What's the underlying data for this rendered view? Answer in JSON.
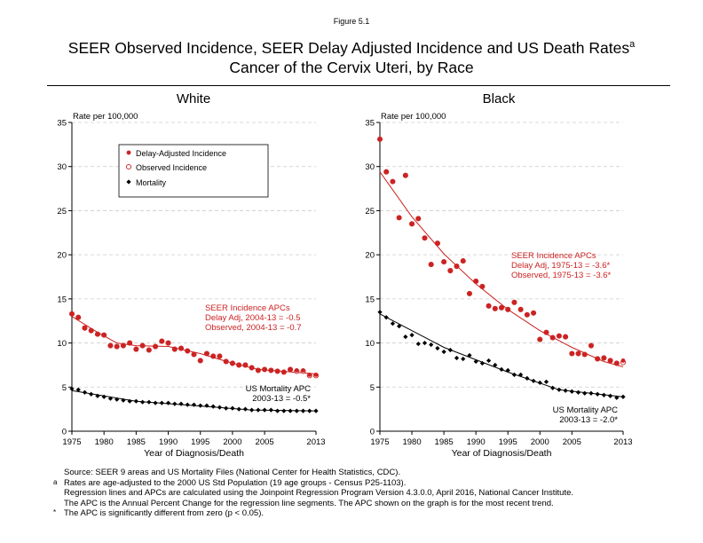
{
  "header": {
    "figure_label": "Figure 5.1",
    "title_line1": "SEER Observed Incidence, SEER Delay Adjusted Incidence and US Death Rates",
    "title_sup": "a",
    "title_line2": "Cancer of the Cervix Uteri, by Race"
  },
  "colors": {
    "incidence": "#cc2222",
    "mortality": "#000000",
    "gridline": "#cccccc"
  },
  "chart_data": [
    {
      "type": "line",
      "title": "White",
      "ylabel": "Rate per 100,000",
      "xlabel": "Year of Diagnosis/Death",
      "xlim": [
        1975,
        2013
      ],
      "ylim": [
        0,
        35
      ],
      "xticks": [
        1975,
        1980,
        1985,
        1990,
        1995,
        2000,
        2005,
        2013
      ],
      "yticks": [
        0,
        5,
        10,
        15,
        20,
        25,
        30,
        35
      ],
      "grid": "horizontal dashed",
      "legend": {
        "placement": "top-left",
        "entries": [
          "Delay-Adjusted Incidence",
          "Observed Incidence",
          "Mortality"
        ]
      },
      "annotations": {
        "incidence": [
          "SEER Incidence APCs",
          "Delay Adj, 2004-13 = -0.5",
          "Observed, 2004-13 = -0.7"
        ],
        "mortality": [
          "US Mortality APC",
          "2003-13 = -0.5*"
        ]
      },
      "x": [
        1975,
        1976,
        1977,
        1978,
        1979,
        1980,
        1981,
        1982,
        1983,
        1984,
        1985,
        1986,
        1987,
        1988,
        1989,
        1990,
        1991,
        1992,
        1993,
        1994,
        1995,
        1996,
        1997,
        1998,
        1999,
        2000,
        2001,
        2002,
        2003,
        2004,
        2005,
        2006,
        2007,
        2008,
        2009,
        2010,
        2011,
        2012,
        2013
      ],
      "series": [
        {
          "name": "Delay-Adjusted Incidence",
          "values": [
            13.3,
            12.9,
            11.7,
            11.4,
            11.0,
            10.9,
            9.7,
            9.6,
            9.7,
            10.0,
            9.3,
            9.7,
            9.2,
            9.6,
            10.2,
            10.0,
            9.3,
            9.4,
            9.1,
            8.7,
            8.0,
            8.8,
            8.5,
            8.5,
            7.9,
            7.7,
            7.5,
            7.5,
            7.2,
            6.9,
            7.0,
            6.9,
            6.8,
            6.7,
            7.0,
            6.9,
            6.9,
            6.4,
            6.4
          ]
        },
        {
          "name": "Observed Incidence",
          "values": [
            13.3,
            12.9,
            11.7,
            11.4,
            11.0,
            10.9,
            9.7,
            9.6,
            9.7,
            10.0,
            9.3,
            9.7,
            9.2,
            9.6,
            10.2,
            10.0,
            9.3,
            9.4,
            9.1,
            8.7,
            8.0,
            8.8,
            8.5,
            8.5,
            7.9,
            7.7,
            7.5,
            7.5,
            7.2,
            6.9,
            7.0,
            6.9,
            6.8,
            6.7,
            7.0,
            6.8,
            6.8,
            6.3,
            6.3
          ]
        },
        {
          "name": "Mortality",
          "values": [
            4.8,
            4.7,
            4.4,
            4.2,
            4.0,
            3.9,
            3.7,
            3.6,
            3.5,
            3.4,
            3.4,
            3.3,
            3.3,
            3.2,
            3.2,
            3.2,
            3.1,
            3.1,
            3.0,
            3.0,
            2.9,
            2.9,
            2.8,
            2.7,
            2.6,
            2.6,
            2.5,
            2.5,
            2.4,
            2.4,
            2.4,
            2.4,
            2.3,
            2.3,
            2.3,
            2.3,
            2.3,
            2.3,
            2.3
          ]
        }
      ],
      "fits": {
        "incidence": {
          "x": [
            1975,
            1979,
            1982,
            1985,
            1990,
            1995,
            2000,
            2004,
            2013
          ],
          "y": [
            13.0,
            11.2,
            10.0,
            9.7,
            9.6,
            8.8,
            7.7,
            7.0,
            6.5
          ]
        },
        "mortality": {
          "x": [
            1975,
            1985,
            2003,
            2013
          ],
          "y": [
            4.6,
            3.4,
            2.4,
            2.3
          ]
        }
      }
    },
    {
      "type": "line",
      "title": "Black",
      "ylabel": "Rate per 100,000",
      "xlabel": "Year of Diagnosis/Death",
      "xlim": [
        1975,
        2013
      ],
      "ylim": [
        0,
        35
      ],
      "xticks": [
        1975,
        1980,
        1985,
        1990,
        1995,
        2000,
        2005,
        2013
      ],
      "yticks": [
        0,
        5,
        10,
        15,
        20,
        25,
        30,
        35
      ],
      "grid": "horizontal dashed",
      "annotations": {
        "incidence": [
          "SEER Incidence APCs",
          "Delay Adj, 1975-13 = -3.6*",
          "Observed, 1975-13 = -3.6*"
        ],
        "mortality": [
          "US Mortality APC",
          "2003-13 = -2.0*"
        ]
      },
      "x": [
        1975,
        1976,
        1977,
        1978,
        1979,
        1980,
        1981,
        1982,
        1983,
        1984,
        1985,
        1986,
        1987,
        1988,
        1989,
        1990,
        1991,
        1992,
        1993,
        1994,
        1995,
        1996,
        1997,
        1998,
        1999,
        2000,
        2001,
        2002,
        2003,
        2004,
        2005,
        2006,
        2007,
        2008,
        2009,
        2010,
        2011,
        2012,
        2013
      ],
      "series": [
        {
          "name": "Delay-Adjusted Incidence",
          "values": [
            33.1,
            29.4,
            28.3,
            24.2,
            29.0,
            23.5,
            24.1,
            21.9,
            18.9,
            21.3,
            19.2,
            18.2,
            18.7,
            19.3,
            15.6,
            17.0,
            16.4,
            14.2,
            13.9,
            14.0,
            13.8,
            14.6,
            13.8,
            13.2,
            13.4,
            10.4,
            11.2,
            10.6,
            10.8,
            10.7,
            8.8,
            8.8,
            8.7,
            9.7,
            8.2,
            8.3,
            8.0,
            7.7,
            8.0
          ]
        },
        {
          "name": "Observed Incidence",
          "values": [
            33.1,
            29.4,
            28.3,
            24.2,
            29.0,
            23.5,
            24.1,
            21.9,
            18.9,
            21.3,
            19.2,
            18.2,
            18.7,
            19.3,
            15.6,
            17.0,
            16.4,
            14.2,
            13.9,
            14.0,
            13.8,
            14.6,
            13.8,
            13.2,
            13.4,
            10.4,
            11.2,
            10.6,
            10.8,
            10.7,
            8.8,
            8.8,
            8.7,
            9.7,
            8.2,
            8.3,
            8.0,
            7.7,
            7.8
          ]
        },
        {
          "name": "Mortality",
          "values": [
            13.5,
            12.9,
            12.2,
            11.9,
            10.7,
            10.9,
            9.9,
            10.0,
            9.8,
            9.4,
            9.0,
            9.2,
            8.3,
            8.2,
            8.6,
            7.9,
            7.7,
            8.0,
            7.5,
            7.0,
            6.9,
            6.4,
            6.4,
            6.0,
            5.7,
            5.5,
            5.6,
            4.9,
            4.7,
            4.6,
            4.5,
            4.4,
            4.3,
            4.3,
            4.2,
            4.1,
            4.0,
            3.8,
            3.9
          ]
        }
      ],
      "fits": {
        "incidence": {
          "x": [
            1975,
            1980,
            1985,
            1990,
            1995,
            2000,
            2005,
            2010,
            2013
          ],
          "y": [
            29.4,
            24.3,
            20.1,
            16.7,
            13.8,
            11.4,
            9.5,
            7.9,
            7.3
          ]
        },
        "mortality": {
          "x": [
            1975,
            1985,
            1995,
            2003,
            2013
          ],
          "y": [
            13.3,
            9.5,
            6.7,
            4.7,
            3.9
          ]
        }
      }
    }
  ],
  "footnotes": [
    {
      "mark": "",
      "text": "Source: SEER 9 areas and US Mortality Files (National Center for Health Statistics, CDC)."
    },
    {
      "mark": "a",
      "text": "Rates are age-adjusted to the 2000 US Std Population (19 age groups - Census P25-1103)."
    },
    {
      "mark": "",
      "text": "Regression lines and APCs are calculated using the Joinpoint Regression Program Version 4.3.0.0, April 2016, National Cancer Institute."
    },
    {
      "mark": "",
      "text": "The APC is the Annual Percent Change for the regression line segments. The APC shown on the graph is for the most recent trend."
    },
    {
      "mark": "*",
      "text": "The APC is significantly different from zero (p < 0.05)."
    }
  ]
}
